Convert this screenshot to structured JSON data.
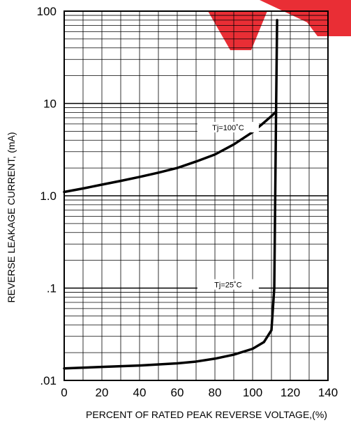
{
  "chart_data": {
    "type": "line",
    "title": "",
    "xlabel": "PERCENT OF RATED PEAK REVERSE VOLTAGE,(%)",
    "ylabel": "REVERSE LEAKAGE CURRENT, (mA)",
    "x_scale": "linear",
    "y_scale": "log",
    "xlim": [
      0,
      140
    ],
    "ylim": [
      0.01,
      100
    ],
    "grid": true,
    "x_ticks": [
      "0",
      "20",
      "40",
      "60",
      "80",
      "100",
      "120",
      "140"
    ],
    "y_ticks": [
      ".01",
      ".1",
      "1.0",
      "10",
      "100"
    ],
    "x_tick_values": [
      0,
      20,
      40,
      60,
      80,
      100,
      120,
      140
    ],
    "y_tick_values": [
      0.01,
      0.1,
      1,
      10,
      100
    ],
    "series": [
      {
        "name": "Tj=100˚C",
        "x": [
          0,
          10,
          20,
          30,
          40,
          50,
          60,
          70,
          80,
          90,
          100,
          106,
          110,
          112
        ],
        "y": [
          1.1,
          1.2,
          1.32,
          1.45,
          1.6,
          1.78,
          2.0,
          2.35,
          2.8,
          3.6,
          4.9,
          6.2,
          7.3,
          8.0
        ]
      },
      {
        "name": "Tj=25˚C",
        "x": [
          0,
          20,
          40,
          60,
          70,
          80,
          90,
          100,
          106,
          110,
          111.5,
          112,
          112.5,
          113
        ],
        "y": [
          0.0135,
          0.014,
          0.0145,
          0.0153,
          0.016,
          0.0172,
          0.019,
          0.022,
          0.026,
          0.035,
          0.1,
          1,
          10,
          80
        ]
      }
    ]
  },
  "watermark": {
    "color": "#e8232a"
  }
}
